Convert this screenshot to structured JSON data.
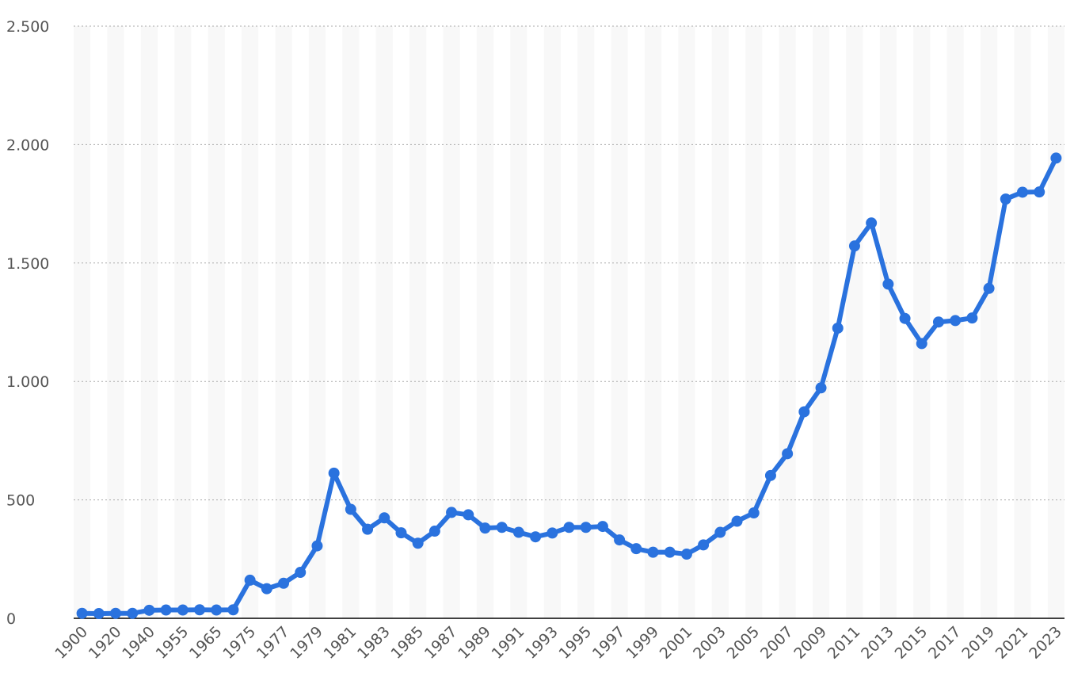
{
  "chart_data": {
    "type": "line",
    "title": "",
    "xlabel": "",
    "ylabel": "",
    "ylim": [
      0,
      2500
    ],
    "y_ticks": [
      0,
      500,
      1000,
      1500,
      2000,
      2500
    ],
    "y_tick_labels": [
      "0",
      "500",
      "1.000",
      "1.500",
      "2.000",
      "2.500"
    ],
    "grid": true,
    "legend": false,
    "x": [
      "1900",
      "1910",
      "1920",
      "1930",
      "1940",
      "1950",
      "1955",
      "1960",
      "1965",
      "1970",
      "1975",
      "1976",
      "1977",
      "1978",
      "1979",
      "1980",
      "1981",
      "1982",
      "1983",
      "1984",
      "1985",
      "1986",
      "1987",
      "1988",
      "1989",
      "1990",
      "1991",
      "1992",
      "1993",
      "1994",
      "1995",
      "1996",
      "1997",
      "1998",
      "1999",
      "2000",
      "2001",
      "2002",
      "2003",
      "2004",
      "2005",
      "2006",
      "2007",
      "2008",
      "2009",
      "2010",
      "2011",
      "2012",
      "2013",
      "2014",
      "2015",
      "2016",
      "2017",
      "2018",
      "2019",
      "2020",
      "2021",
      "2022",
      "2023"
    ],
    "x_tick_labels": [
      "1900",
      "1920",
      "1940",
      "1955",
      "1965",
      "1975",
      "1977",
      "1979",
      "1981",
      "1983",
      "1985",
      "1987",
      "1989",
      "1991",
      "1993",
      "1995",
      "1997",
      "1999",
      "2001",
      "2003",
      "2005",
      "2007",
      "2009",
      "2011",
      "2013",
      "2015",
      "2017",
      "2019",
      "2021",
      "2023"
    ],
    "series": [
      {
        "color": "#2a72de",
        "values": [
          21,
          20,
          21,
          21,
          34,
          35,
          35,
          36,
          35,
          36,
          161,
          125,
          148,
          194,
          306,
          613,
          460,
          376,
          424,
          361,
          317,
          368,
          447,
          437,
          381,
          384,
          363,
          344,
          360,
          384,
          384,
          388,
          331,
          294,
          279,
          279,
          271,
          310,
          363,
          410,
          445,
          603,
          695,
          872,
          973,
          1225,
          1572,
          1669,
          1411,
          1266,
          1160,
          1251,
          1257,
          1268,
          1393,
          1770,
          1799,
          1800,
          1943
        ]
      }
    ]
  }
}
